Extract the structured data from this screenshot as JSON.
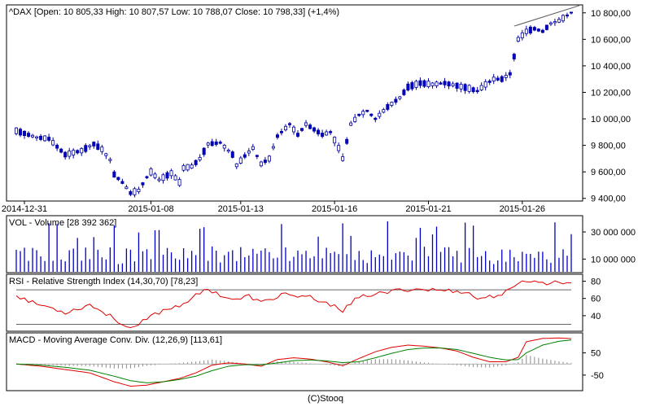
{
  "footer": {
    "copyright": "(C)Stooq"
  },
  "chart_data": [
    {
      "type": "candlestick",
      "panel": "price",
      "title": "^DAX [Open: 10 805,33  High: 10 807,57  Low: 10 788,07  Close: 10 798,33] (+1,4%)",
      "y_ticks": [
        "9 400,00",
        "9 600,00",
        "9 800,00",
        "10 000,00",
        "10 200,00",
        "10 400,00",
        "10 600,00",
        "10 800,00"
      ],
      "y_tick_values": [
        9400,
        9600,
        9800,
        10000,
        10200,
        10400,
        10600,
        10800
      ],
      "ylim": [
        9380,
        10860
      ],
      "x_ticks": [
        "2014-12-31",
        "2015-01-08",
        "2015-01-13",
        "2015-01-16",
        "2015-01-21",
        "2015-01-26"
      ],
      "x_tick_index": [
        2,
        33,
        55,
        78,
        101,
        124
      ],
      "trendline": {
        "from": [
          122,
          10700
        ],
        "to": [
          138,
          10855
        ]
      },
      "bar_count": 137,
      "anchors": [
        [
          0,
          9910
        ],
        [
          3,
          9880
        ],
        [
          5,
          9860
        ],
        [
          8,
          9850
        ],
        [
          10,
          9790
        ],
        [
          12,
          9730
        ],
        [
          16,
          9760
        ],
        [
          19,
          9810
        ],
        [
          21,
          9770
        ],
        [
          23,
          9690
        ],
        [
          24,
          9580
        ],
        [
          26,
          9520
        ],
        [
          28,
          9440
        ],
        [
          30,
          9460
        ],
        [
          32,
          9560
        ],
        [
          33,
          9600
        ],
        [
          35,
          9540
        ],
        [
          38,
          9590
        ],
        [
          40,
          9520
        ],
        [
          41,
          9630
        ],
        [
          43,
          9640
        ],
        [
          45,
          9700
        ],
        [
          47,
          9810
        ],
        [
          50,
          9820
        ],
        [
          53,
          9730
        ],
        [
          54,
          9650
        ],
        [
          56,
          9720
        ],
        [
          58,
          9780
        ],
        [
          60,
          9660
        ],
        [
          62,
          9700
        ],
        [
          64,
          9870
        ],
        [
          67,
          9960
        ],
        [
          69,
          9880
        ],
        [
          71,
          9960
        ],
        [
          73,
          9920
        ],
        [
          75,
          9880
        ],
        [
          77,
          9900
        ],
        [
          79,
          9780
        ],
        [
          80,
          9700
        ],
        [
          82,
          9960
        ],
        [
          84,
          10030
        ],
        [
          86,
          10060
        ],
        [
          88,
          10000
        ],
        [
          91,
          10090
        ],
        [
          94,
          10160
        ],
        [
          96,
          10240
        ],
        [
          99,
          10270
        ],
        [
          102,
          10260
        ],
        [
          105,
          10270
        ],
        [
          108,
          10250
        ],
        [
          111,
          10230
        ],
        [
          113,
          10210
        ],
        [
          115,
          10260
        ],
        [
          117,
          10300
        ],
        [
          119,
          10300
        ],
        [
          121,
          10340
        ],
        [
          123,
          10600
        ],
        [
          125,
          10660
        ],
        [
          127,
          10680
        ],
        [
          129,
          10660
        ],
        [
          131,
          10720
        ],
        [
          133,
          10740
        ],
        [
          135,
          10780
        ],
        [
          136,
          10800
        ]
      ],
      "last_bar": {
        "open": 10805.33,
        "high": 10807.57,
        "low": 10788.07,
        "close": 10798.33
      }
    },
    {
      "type": "bar",
      "panel": "volume",
      "title": "VOL - Volume [28 392 362]",
      "y_ticks": [
        "10 000 000",
        "30 000 000"
      ],
      "y_tick_values": [
        10000000,
        30000000
      ],
      "ylim": [
        0,
        42000000
      ],
      "value_range": [
        4000000,
        38000000
      ],
      "last_value": 28392362
    },
    {
      "type": "line",
      "panel": "rsi",
      "title": "RSI - Relative Strength Index (14,30,70) [78,23]",
      "y_ticks": [
        "40",
        "60",
        "80"
      ],
      "y_tick_values": [
        40,
        60,
        80
      ],
      "ylim": [
        22,
        88
      ],
      "bands": [
        30,
        70
      ],
      "last_value": 78.23,
      "anchors": [
        [
          0,
          64
        ],
        [
          4,
          55
        ],
        [
          8,
          50
        ],
        [
          12,
          44
        ],
        [
          15,
          48
        ],
        [
          18,
          53
        ],
        [
          21,
          45
        ],
        [
          24,
          37
        ],
        [
          27,
          27
        ],
        [
          29,
          25
        ],
        [
          31,
          33
        ],
        [
          34,
          42
        ],
        [
          37,
          48
        ],
        [
          40,
          52
        ],
        [
          44,
          63
        ],
        [
          47,
          71
        ],
        [
          51,
          62
        ],
        [
          54,
          58
        ],
        [
          57,
          63
        ],
        [
          60,
          55
        ],
        [
          63,
          60
        ],
        [
          66,
          67
        ],
        [
          69,
          60
        ],
        [
          72,
          62
        ],
        [
          75,
          54
        ],
        [
          78,
          53
        ],
        [
          80,
          46
        ],
        [
          83,
          58
        ],
        [
          86,
          64
        ],
        [
          90,
          66
        ],
        [
          94,
          70
        ],
        [
          98,
          71
        ],
        [
          102,
          70
        ],
        [
          106,
          69
        ],
        [
          110,
          68
        ],
        [
          113,
          60
        ],
        [
          116,
          62
        ],
        [
          119,
          65
        ],
        [
          122,
          72
        ],
        [
          124,
          82
        ],
        [
          127,
          79
        ],
        [
          130,
          78
        ],
        [
          133,
          79
        ],
        [
          136,
          78
        ]
      ]
    },
    {
      "type": "line",
      "panel": "macd",
      "title": "MACD - Moving Average Conv. Div. (12,26,9) [113,61]",
      "y_ticks": [
        "-50",
        "50"
      ],
      "y_tick_values": [
        -50,
        50
      ],
      "ylim": [
        -120,
        140
      ],
      "last_value": 113.61,
      "series": [
        {
          "color": "#e00000",
          "anchors": [
            [
              0,
              0
            ],
            [
              6,
              -10
            ],
            [
              12,
              -25
            ],
            [
              18,
              -40
            ],
            [
              24,
              -80
            ],
            [
              28,
              -100
            ],
            [
              32,
              -95
            ],
            [
              36,
              -80
            ],
            [
              40,
              -65
            ],
            [
              44,
              -40
            ],
            [
              48,
              -5
            ],
            [
              52,
              5
            ],
            [
              56,
              0
            ],
            [
              60,
              -10
            ],
            [
              64,
              20
            ],
            [
              68,
              28
            ],
            [
              72,
              22
            ],
            [
              76,
              10
            ],
            [
              80,
              -8
            ],
            [
              84,
              25
            ],
            [
              88,
              55
            ],
            [
              92,
              75
            ],
            [
              96,
              85
            ],
            [
              100,
              80
            ],
            [
              104,
              72
            ],
            [
              108,
              58
            ],
            [
              112,
              30
            ],
            [
              116,
              10
            ],
            [
              120,
              10
            ],
            [
              123,
              30
            ],
            [
              125,
              100
            ],
            [
              129,
              115
            ],
            [
              133,
              117
            ],
            [
              136,
              114
            ]
          ]
        },
        {
          "color": "#008000",
          "anchors": [
            [
              0,
              0
            ],
            [
              6,
              -5
            ],
            [
              12,
              -15
            ],
            [
              18,
              -28
            ],
            [
              24,
              -55
            ],
            [
              28,
              -75
            ],
            [
              32,
              -85
            ],
            [
              36,
              -80
            ],
            [
              40,
              -70
            ],
            [
              44,
              -55
            ],
            [
              48,
              -30
            ],
            [
              52,
              -10
            ],
            [
              56,
              -3
            ],
            [
              60,
              -4
            ],
            [
              64,
              5
            ],
            [
              68,
              15
            ],
            [
              72,
              18
            ],
            [
              76,
              14
            ],
            [
              80,
              6
            ],
            [
              84,
              10
            ],
            [
              88,
              28
            ],
            [
              92,
              48
            ],
            [
              96,
              65
            ],
            [
              100,
              72
            ],
            [
              104,
              72
            ],
            [
              108,
              65
            ],
            [
              112,
              48
            ],
            [
              116,
              30
            ],
            [
              120,
              18
            ],
            [
              123,
              20
            ],
            [
              125,
              50
            ],
            [
              129,
              85
            ],
            [
              133,
              102
            ],
            [
              136,
              108
            ]
          ]
        }
      ]
    }
  ]
}
